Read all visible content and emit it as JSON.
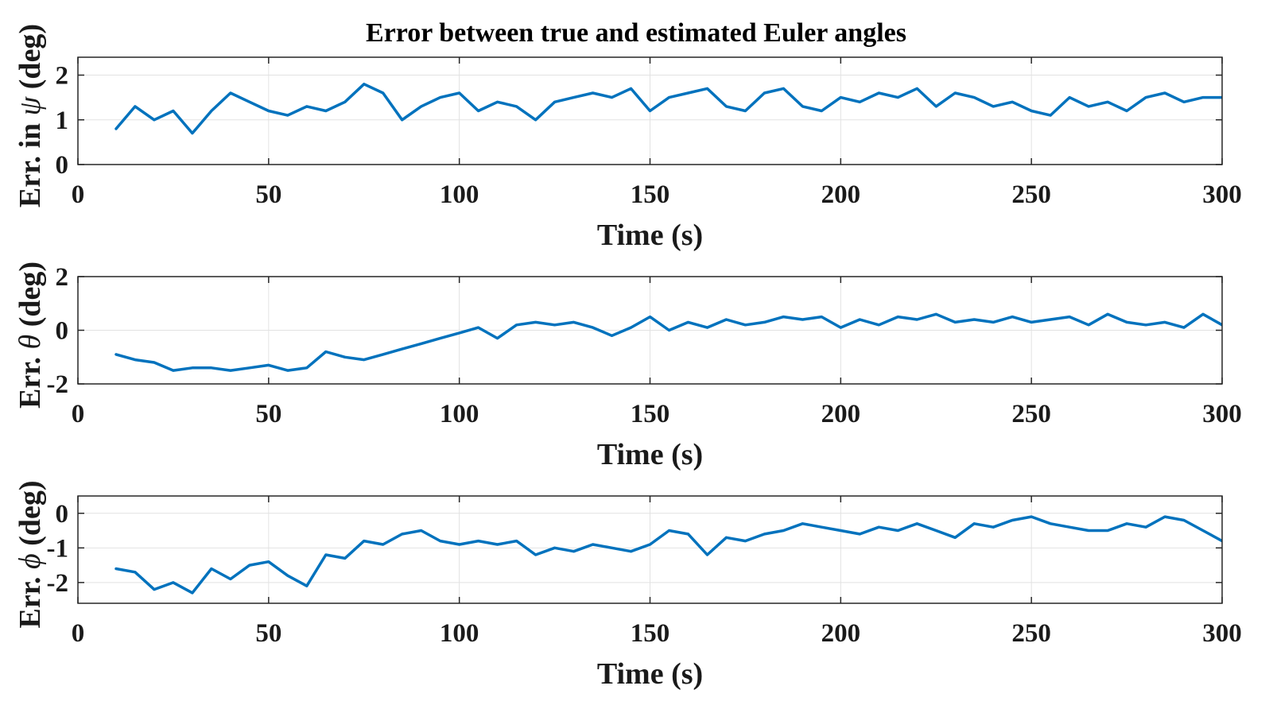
{
  "chart_data": {
    "title": "Error between true and estimated Euler angles",
    "type": "line",
    "line_color": "#0072BD",
    "grid": true,
    "subplots": [
      {
        "id": "psi",
        "type": "line",
        "ylabel_prefix": "Err. in ",
        "ylabel_symbol": "ψ",
        "ylabel_suffix": " (deg)",
        "xlabel": "Time (s)",
        "xlim": [
          0,
          300
        ],
        "ylim": [
          0,
          2.4
        ],
        "xticks": [
          0,
          50,
          100,
          150,
          200,
          250,
          300
        ],
        "yticks": [
          0,
          1,
          2
        ],
        "x": [
          10,
          15,
          20,
          25,
          30,
          35,
          40,
          45,
          50,
          55,
          60,
          65,
          70,
          75,
          80,
          85,
          90,
          95,
          100,
          105,
          110,
          115,
          120,
          125,
          130,
          135,
          140,
          145,
          150,
          155,
          160,
          165,
          170,
          175,
          180,
          185,
          190,
          195,
          200,
          205,
          210,
          215,
          220,
          225,
          230,
          235,
          240,
          245,
          250,
          255,
          260,
          265,
          270,
          275,
          280,
          285,
          290,
          295,
          300
        ],
        "series": [
          {
            "values": [
              0.8,
              1.3,
              1.0,
              1.2,
              0.7,
              1.2,
              1.6,
              1.4,
              1.2,
              1.1,
              1.3,
              1.2,
              1.4,
              1.8,
              1.6,
              1.0,
              1.3,
              1.5,
              1.6,
              1.2,
              1.4,
              1.3,
              1.0,
              1.4,
              1.5,
              1.6,
              1.5,
              1.7,
              1.2,
              1.5,
              1.6,
              1.7,
              1.3,
              1.2,
              1.6,
              1.7,
              1.3,
              1.2,
              1.5,
              1.4,
              1.6,
              1.5,
              1.7,
              1.3,
              1.6,
              1.5,
              1.3,
              1.4,
              1.2,
              1.1,
              1.5,
              1.3,
              1.4,
              1.2,
              1.5,
              1.6,
              1.4,
              1.5,
              1.5
            ]
          }
        ]
      },
      {
        "id": "theta",
        "type": "line",
        "ylabel_prefix": "Err. ",
        "ylabel_symbol": "θ",
        "ylabel_suffix": " (deg)",
        "xlabel": "Time (s)",
        "xlim": [
          0,
          300
        ],
        "ylim": [
          -2,
          2
        ],
        "xticks": [
          0,
          50,
          100,
          150,
          200,
          250,
          300
        ],
        "yticks": [
          -2,
          0,
          2
        ],
        "x": [
          10,
          15,
          20,
          25,
          30,
          35,
          40,
          45,
          50,
          55,
          60,
          65,
          70,
          75,
          80,
          85,
          90,
          95,
          100,
          105,
          110,
          115,
          120,
          125,
          130,
          135,
          140,
          145,
          150,
          155,
          160,
          165,
          170,
          175,
          180,
          185,
          190,
          195,
          200,
          205,
          210,
          215,
          220,
          225,
          230,
          235,
          240,
          245,
          250,
          255,
          260,
          265,
          270,
          275,
          280,
          285,
          290,
          295,
          300
        ],
        "series": [
          {
            "values": [
              -0.9,
              -1.1,
              -1.2,
              -1.5,
              -1.4,
              -1.4,
              -1.5,
              -1.4,
              -1.3,
              -1.5,
              -1.4,
              -0.8,
              -1.0,
              -1.1,
              -0.9,
              -0.7,
              -0.5,
              -0.3,
              -0.1,
              0.1,
              -0.3,
              0.2,
              0.3,
              0.2,
              0.3,
              0.1,
              -0.2,
              0.1,
              0.5,
              0.0,
              0.3,
              0.1,
              0.4,
              0.2,
              0.3,
              0.5,
              0.4,
              0.5,
              0.1,
              0.4,
              0.2,
              0.5,
              0.4,
              0.6,
              0.3,
              0.4,
              0.3,
              0.5,
              0.3,
              0.4,
              0.5,
              0.2,
              0.6,
              0.3,
              0.2,
              0.3,
              0.1,
              0.6,
              0.2
            ]
          }
        ]
      },
      {
        "id": "phi",
        "type": "line",
        "ylabel_prefix": "Err. ",
        "ylabel_symbol": "ϕ",
        "ylabel_suffix": " (deg)",
        "xlabel": "Time (s)",
        "xlim": [
          0,
          300
        ],
        "ylim": [
          -2.6,
          0.5
        ],
        "xticks": [
          0,
          50,
          100,
          150,
          200,
          250,
          300
        ],
        "yticks": [
          -2,
          -1,
          0
        ],
        "x": [
          10,
          15,
          20,
          25,
          30,
          35,
          40,
          45,
          50,
          55,
          60,
          65,
          70,
          75,
          80,
          85,
          90,
          95,
          100,
          105,
          110,
          115,
          120,
          125,
          130,
          135,
          140,
          145,
          150,
          155,
          160,
          165,
          170,
          175,
          180,
          185,
          190,
          195,
          200,
          205,
          210,
          215,
          220,
          225,
          230,
          235,
          240,
          245,
          250,
          255,
          260,
          265,
          270,
          275,
          280,
          285,
          290,
          295,
          300
        ],
        "series": [
          {
            "values": [
              -1.6,
              -1.7,
              -2.2,
              -2.0,
              -2.3,
              -1.6,
              -1.9,
              -1.5,
              -1.4,
              -1.8,
              -2.1,
              -1.2,
              -1.3,
              -0.8,
              -0.9,
              -0.6,
              -0.5,
              -0.8,
              -0.9,
              -0.8,
              -0.9,
              -0.8,
              -1.2,
              -1.0,
              -1.1,
              -0.9,
              -1.0,
              -1.1,
              -0.9,
              -0.5,
              -0.6,
              -1.2,
              -0.7,
              -0.8,
              -0.6,
              -0.5,
              -0.3,
              -0.4,
              -0.5,
              -0.6,
              -0.4,
              -0.5,
              -0.3,
              -0.5,
              -0.7,
              -0.3,
              -0.4,
              -0.2,
              -0.1,
              -0.3,
              -0.4,
              -0.5,
              -0.5,
              -0.3,
              -0.4,
              -0.1,
              -0.2,
              -0.5,
              -0.8
            ]
          }
        ]
      }
    ]
  }
}
